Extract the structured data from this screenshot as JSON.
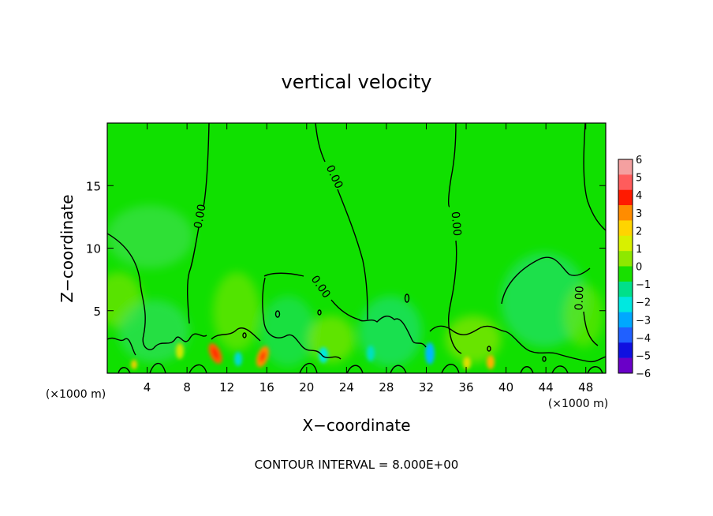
{
  "chart_data": {
    "type": "heatmap",
    "title": "vertical velocity",
    "xlabel": "X−coordinate",
    "ylabel": "Z−coordinate",
    "x_unit_left": "(×1000 m)",
    "x_unit_right": "(×1000 m)",
    "xlim": [
      0,
      50
    ],
    "ylim": [
      0,
      20
    ],
    "x_ticks": [
      4,
      8,
      12,
      16,
      20,
      24,
      28,
      32,
      36,
      40,
      44,
      48
    ],
    "y_ticks": [
      5,
      10,
      15
    ],
    "footer": "CONTOUR INTERVAL = 8.000E+00",
    "contour_label": "0.00",
    "colorbar": {
      "levels": [
        "6",
        "5",
        "4",
        "3",
        "2",
        "1",
        "0",
        "−1",
        "−2",
        "−3",
        "−4",
        "−5",
        "−6"
      ],
      "colors": [
        "#f4a0a0",
        "#ff5c5c",
        "#ff1a00",
        "#ff8c00",
        "#ffd400",
        "#d8f000",
        "#8ee800",
        "#18e000",
        "#00e08a",
        "#00e8e0",
        "#00a8ff",
        "#2060ff",
        "#1010e0",
        "#6a00c8"
      ]
    },
    "field_background_color": "#10e000"
  }
}
